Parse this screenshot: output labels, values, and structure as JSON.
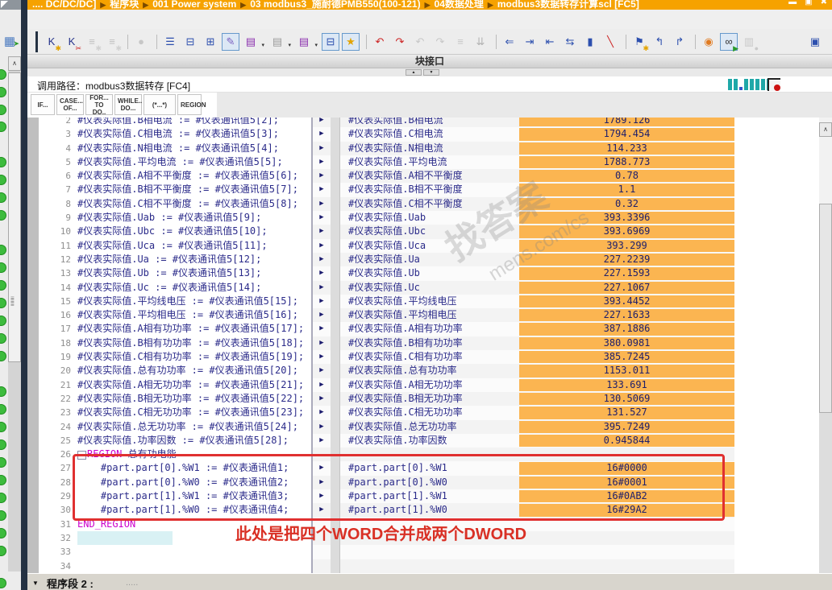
{
  "colors": {
    "title_orange": "#F6A200",
    "divider_navy": "#243142",
    "status_green": "#3DBB3D",
    "value_bg": "#FBB551",
    "code_text": "#2B2B8A",
    "keyword": "#CC00CC",
    "annotation_red": "#D93025",
    "teal": "#1FA8A8"
  },
  "title_bar": {
    "breadcrumb_segments": [
      ".... DC/DC/DC]",
      "程序块",
      "001 Power system",
      "03 modbus3_施耐德PMB550(100-121)",
      "04数据处理",
      "modbus3数据转存计算scl [FC5]"
    ],
    "separator": "▶",
    "window_controls": [
      "▬",
      "▣",
      "✖"
    ]
  },
  "left_panel": {
    "icon_glyph": "▦",
    "icon_overlay": "➤"
  },
  "toolbar": {
    "icons": [
      {
        "name": "pane-dark-separator",
        "type": "darksep"
      },
      {
        "name": "new-network-icon",
        "g": "K",
        "c": "#26348c",
        "o": "✱",
        "oc": "#e3a400"
      },
      {
        "name": "delete-network-icon",
        "g": "K",
        "c": "#26348c",
        "o": "✂",
        "oc": "#cc2222"
      },
      {
        "name": "insert-row-before-icon",
        "g": "≡",
        "c": "#8a8a8a",
        "o": "✱",
        "oc": "#b0b0b0",
        "dis": true
      },
      {
        "name": "insert-row-after-icon",
        "g": "≡",
        "c": "#8a8a8a",
        "o": "✱",
        "oc": "#b0b0b0",
        "dis": true
      },
      {
        "type": "sep"
      },
      {
        "name": "renumber-icon",
        "g": "●",
        "c": "#9a9a9a",
        "dis": true
      },
      {
        "type": "sep"
      },
      {
        "name": "outline-view-icon",
        "g": "☰",
        "c": "#2c4fae"
      },
      {
        "name": "collapse-all-icon",
        "g": "⊟",
        "c": "#2c4fae"
      },
      {
        "name": "expand-all-icon",
        "g": "⊞",
        "c": "#2c4fae"
      },
      {
        "name": "comment-toggle-icon",
        "g": "✎",
        "c": "#7a5fc0",
        "act": true
      },
      {
        "name": "instance-db-icon",
        "g": "▤",
        "c": "#8a2fae",
        "dd": true
      },
      {
        "name": "multi-instance-db-icon",
        "g": "▤",
        "c": "#9a9a9a",
        "dd": true
      },
      {
        "name": "parameter-instance-icon",
        "g": "▤",
        "c": "#8a2fae",
        "dd": true
      },
      {
        "name": "absolute-relative-operands-icon",
        "g": "⊟",
        "c": "#2c4fae",
        "act": true
      },
      {
        "name": "favorites-icon",
        "g": "★",
        "c": "#e3a400",
        "act": true
      },
      {
        "type": "sep"
      },
      {
        "name": "call-structure-icon",
        "g": "↶",
        "c": "#cc2222"
      },
      {
        "name": "call-environment-icon",
        "g": "↷",
        "c": "#cc2222"
      },
      {
        "name": "update-block-call-icon",
        "g": "↶",
        "c": "#9a9a9a",
        "dis": true
      },
      {
        "name": "refresh-interface-icon",
        "g": "↷",
        "c": "#9a9a9a",
        "dis": true
      },
      {
        "name": "consistency-check-icon",
        "g": "≡",
        "c": "#9a9a9a",
        "dis": true
      },
      {
        "name": "compile-icon",
        "g": "⇊",
        "c": "#4a7a4a",
        "dis": true
      },
      {
        "type": "sep"
      },
      {
        "name": "goto-previous-icon",
        "g": "⇐",
        "c": "#2c4fae"
      },
      {
        "name": "indent-right-icon",
        "g": "⇥",
        "c": "#2c4fae"
      },
      {
        "name": "indent-left-icon",
        "g": "⇤",
        "c": "#2c4fae"
      },
      {
        "name": "format-block-icon",
        "g": "⇆",
        "c": "#2c4fae"
      },
      {
        "name": "insert-line-icon",
        "g": "▮",
        "c": "#2c4fae"
      },
      {
        "name": "delete-line-icon",
        "g": "╲",
        "c": "#cc2222"
      },
      {
        "type": "sep"
      },
      {
        "name": "bookmark-icon",
        "g": "⚑",
        "c": "#2c4fae",
        "o": "✱",
        "oc": "#e3a400"
      },
      {
        "name": "previous-bookmark-icon",
        "g": "↰",
        "c": "#2c4fae"
      },
      {
        "name": "next-bookmark-icon",
        "g": "↱",
        "c": "#2c4fae"
      },
      {
        "type": "sep"
      },
      {
        "name": "find-replace-icon",
        "g": "◉",
        "c": "#e07a20"
      },
      {
        "name": "monitoring-glasses-icon",
        "g": "∞",
        "c": "#333333",
        "o": "▶",
        "oc": "#2a9a2a",
        "act": true
      },
      {
        "name": "snapshot-lock-icon",
        "g": "▥",
        "c": "#9a9a9a",
        "o": "●",
        "oc": "#c9a227",
        "dis": true
      },
      {
        "name": "split-editor-icon",
        "g": "▣",
        "c": "#2c4fae",
        "right": true
      }
    ]
  },
  "interface_bar": {
    "label": "块接口"
  },
  "splitter": {
    "up": "▲",
    "down": "▼"
  },
  "call_path_bar": {
    "label": "调用路径：modbus3数据转存 [FC4]"
  },
  "snippet_buttons": [
    {
      "lines": [
        "IF..."
      ]
    },
    {
      "lines": [
        "CASE...",
        "OF..."
      ]
    },
    {
      "lines": [
        "FOR...",
        "TO DO.."
      ]
    },
    {
      "lines": [
        "WHILE..",
        "DO..."
      ]
    },
    {
      "lines": [
        "(*...*)"
      ]
    },
    {
      "lines": [
        "REGION"
      ]
    }
  ],
  "editor": {
    "lines": [
      {
        "n": 2,
        "code": "#仪表实际值.B相电流 := #仪表通讯值5[2];",
        "name": "#仪表实际值.B相电流",
        "value": "1789.126"
      },
      {
        "n": 3,
        "code": "#仪表实际值.C相电流 := #仪表通讯值5[3];",
        "name": "#仪表实际值.C相电流",
        "value": "1794.454"
      },
      {
        "n": 4,
        "code": "#仪表实际值.N相电流 := #仪表通讯值5[4];",
        "name": "#仪表实际值.N相电流",
        "value": "114.233"
      },
      {
        "n": 5,
        "code": "#仪表实际值.平均电流 := #仪表通讯值5[5];",
        "name": "#仪表实际值.平均电流",
        "value": "1788.773"
      },
      {
        "n": 6,
        "code": "#仪表实际值.A相不平衡度 := #仪表通讯值5[6];",
        "name": "#仪表实际值.A相不平衡度",
        "value": "0.78"
      },
      {
        "n": 7,
        "code": "#仪表实际值.B相不平衡度 := #仪表通讯值5[7];",
        "name": "#仪表实际值.B相不平衡度",
        "value": "1.1"
      },
      {
        "n": 8,
        "code": "#仪表实际值.C相不平衡度 := #仪表通讯值5[8];",
        "name": "#仪表实际值.C相不平衡度",
        "value": "0.32"
      },
      {
        "n": 9,
        "code": "#仪表实际值.Uab := #仪表通讯值5[9];",
        "name": "#仪表实际值.Uab",
        "value": "393.3396"
      },
      {
        "n": 10,
        "code": "#仪表实际值.Ubc := #仪表通讯值5[10];",
        "name": "#仪表实际值.Ubc",
        "value": "393.6969"
      },
      {
        "n": 11,
        "code": "#仪表实际值.Uca := #仪表通讯值5[11];",
        "name": "#仪表实际值.Uca",
        "value": "393.299"
      },
      {
        "n": 12,
        "code": "#仪表实际值.Ua := #仪表通讯值5[12];",
        "name": "#仪表实际值.Ua",
        "value": "227.2239"
      },
      {
        "n": 13,
        "code": "#仪表实际值.Ub := #仪表通讯值5[13];",
        "name": "#仪表实际值.Ub",
        "value": "227.1593"
      },
      {
        "n": 14,
        "code": "#仪表实际值.Uc := #仪表通讯值5[14];",
        "name": "#仪表实际值.Uc",
        "value": "227.1067"
      },
      {
        "n": 15,
        "code": "#仪表实际值.平均线电压 := #仪表通讯值5[15];",
        "name": "#仪表实际值.平均线电压",
        "value": "393.4452"
      },
      {
        "n": 16,
        "code": "#仪表实际值.平均相电压 := #仪表通讯值5[16];",
        "name": "#仪表实际值.平均相电压",
        "value": "227.1633"
      },
      {
        "n": 17,
        "code": "#仪表实际值.A相有功功率 := #仪表通讯值5[17];",
        "name": "#仪表实际值.A相有功功率",
        "value": "387.1886"
      },
      {
        "n": 18,
        "code": "#仪表实际值.B相有功功率 := #仪表通讯值5[18];",
        "name": "#仪表实际值.B相有功功率",
        "value": "380.0981"
      },
      {
        "n": 19,
        "code": "#仪表实际值.C相有功功率 := #仪表通讯值5[19];",
        "name": "#仪表实际值.C相有功功率",
        "value": "385.7245"
      },
      {
        "n": 20,
        "code": "#仪表实际值.总有功功率 := #仪表通讯值5[20];",
        "name": "#仪表实际值.总有功功率",
        "value": "1153.011"
      },
      {
        "n": 21,
        "code": "#仪表实际值.A相无功功率 := #仪表通讯值5[21];",
        "name": "#仪表实际值.A相无功功率",
        "value": "133.691"
      },
      {
        "n": 22,
        "code": "#仪表实际值.B相无功功率 := #仪表通讯值5[22];",
        "name": "#仪表实际值.B相无功功率",
        "value": "130.5069"
      },
      {
        "n": 23,
        "code": "#仪表实际值.C相无功功率 := #仪表通讯值5[23];",
        "name": "#仪表实际值.C相无功功率",
        "value": "131.527"
      },
      {
        "n": 24,
        "code": "#仪表实际值.总无功功率 := #仪表通讯值5[24];",
        "name": "#仪表实际值.总无功功率",
        "value": "395.7249"
      },
      {
        "n": 25,
        "code": "#仪表实际值.功率因数 := #仪表通讯值5[28];",
        "name": "#仪表实际值.功率因数",
        "value": "0.945844"
      },
      {
        "n": 26,
        "fold": true,
        "kw": "REGION",
        "code": " 总有功电能"
      },
      {
        "n": 27,
        "code": "    #part.part[0].%W1 := #仪表通讯值1;",
        "name": "#part.part[0].%W1",
        "value": "16#0000"
      },
      {
        "n": 28,
        "code": "    #part.part[0].%W0 := #仪表通讯值2;",
        "name": "#part.part[0].%W0",
        "value": "16#0001"
      },
      {
        "n": 29,
        "code": "    #part.part[1].%W1 := #仪表通讯值3;",
        "name": "#part.part[1].%W1",
        "value": "16#0AB2"
      },
      {
        "n": 30,
        "code": "    #part.part[1].%W0 := #仪表通讯值4;",
        "name": "#part.part[1].%W0",
        "value": "16#29A2"
      },
      {
        "n": 31,
        "kw": "END_REGION",
        "code": ""
      },
      {
        "n": 32,
        "cursor": true,
        "code": ""
      },
      {
        "n": 33,
        "code": ""
      },
      {
        "n": 34,
        "code": ""
      }
    ]
  },
  "annotation": {
    "text": "此处是把四个WORD合并成两个DWORD"
  },
  "watermarks": [
    "找答案",
    "mens.com/cs"
  ],
  "bottom_bar": {
    "collapse_glyph": "▼",
    "label": "程序段 2 :",
    "comment_placeholder": "....."
  }
}
